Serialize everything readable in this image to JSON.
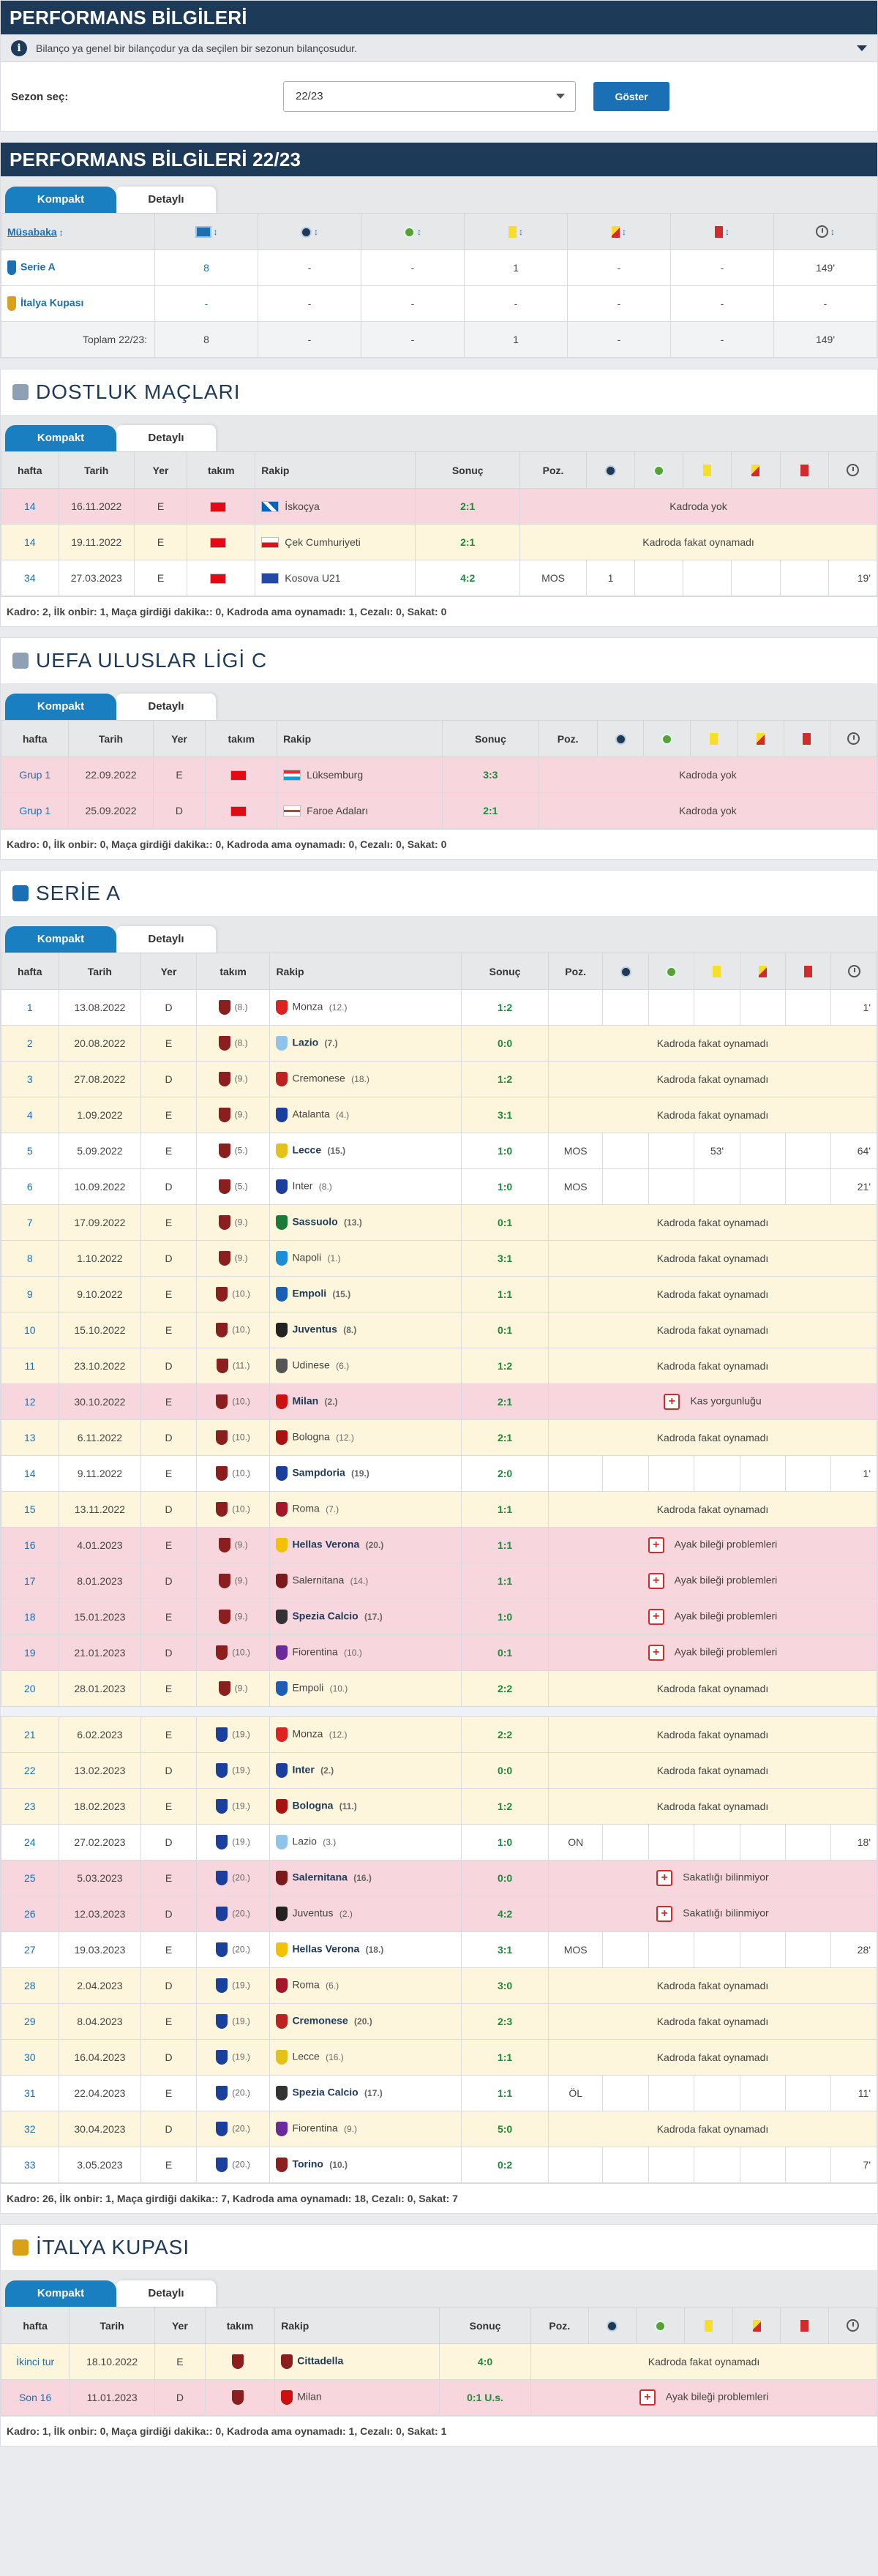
{
  "perf": {
    "title": "PERFORMANS BİLGİLERİ",
    "info": "Bilanço ya genel bir bilançodur ya da seçilen bir sezonun bilançosudur.",
    "season_label": "Sezon seç:",
    "season_value": "22/23",
    "show_button": "Göster"
  },
  "perf2": {
    "title": "PERFORMANS BİLGİLERİ 22/23",
    "tab_compact": "Kompakt",
    "tab_detail": "Detaylı",
    "col_comp": "Müsabaka",
    "rows": [
      {
        "comp": "Serie A",
        "c1": "8",
        "c2": "-",
        "c3": "-",
        "c4": "1",
        "c5": "-",
        "c6": "-",
        "c7": "149'"
      },
      {
        "comp": "İtalya Kupası",
        "c1": "-",
        "c2": "-",
        "c3": "-",
        "c4": "-",
        "c5": "-",
        "c6": "-",
        "c7": "-"
      }
    ],
    "total": {
      "label": "Toplam 22/23:",
      "c1": "8",
      "c2": "-",
      "c3": "-",
      "c4": "1",
      "c5": "-",
      "c6": "-",
      "c7": "149'"
    }
  },
  "cols": {
    "hafta": "hafta",
    "tarih": "Tarih",
    "yer": "Yer",
    "takim": "takım",
    "rakip": "Rakip",
    "sonuc": "Sonuç",
    "poz": "Poz."
  },
  "friendly": {
    "title": "DOSTLUK MAÇLARI",
    "tab_compact": "Kompakt",
    "tab_detail": "Detaylı",
    "rows": [
      {
        "h": "14",
        "d": "16.11.2022",
        "y": "E",
        "opp": "İskoçya",
        "res": "2:1",
        "note": "Kadroda yok",
        "cls": "r"
      },
      {
        "h": "14",
        "d": "19.11.2022",
        "y": "E",
        "opp": "Çek Cumhuriyeti",
        "res": "2:1",
        "note": "Kadroda fakat oynamadı",
        "cls": "y"
      },
      {
        "h": "34",
        "d": "27.03.2023",
        "y": "E",
        "opp": "Kosova U21",
        "res": "4:2",
        "poz": "MOS",
        "g": "1",
        "min": "19'",
        "cls": "w"
      }
    ],
    "footer": "Kadro: 2, İlk onbir: 1, Maça girdiği dakika:: 0, Kadroda ama oynamadı: 1, Cezalı: 0, Sakat: 0"
  },
  "nations": {
    "title": "UEFA ULUSLAR LİGİ C",
    "tab_compact": "Kompakt",
    "tab_detail": "Detaylı",
    "rows": [
      {
        "h": "Grup 1",
        "d": "22.09.2022",
        "y": "E",
        "opp": "Lüksemburg",
        "res": "3:3",
        "note": "Kadroda yok",
        "cls": "r"
      },
      {
        "h": "Grup 1",
        "d": "25.09.2022",
        "y": "D",
        "opp": "Faroe Adaları",
        "res": "2:1",
        "note": "Kadroda yok",
        "cls": "r"
      }
    ],
    "footer": "Kadro: 0, İlk onbir: 0, Maça girdiği dakika:: 0, Kadroda ama oynamadı: 0, Cezalı: 0, Sakat: 0"
  },
  "seriea": {
    "title": "SERİE A",
    "tab_compact": "Kompakt",
    "tab_detail": "Detaylı",
    "rows": [
      {
        "h": "1",
        "d": "13.08.2022",
        "y": "D",
        "tr": "(8.)",
        "opp": "Monza",
        "or": "(12.)",
        "res": "1:2",
        "min": "1'",
        "cls": "w"
      },
      {
        "h": "2",
        "d": "20.08.2022",
        "y": "E",
        "tr": "(8.)",
        "opp": "Lazio",
        "or": "(7.)",
        "res": "0:0",
        "note": "Kadroda fakat oynamadı",
        "cls": "y",
        "b": 1
      },
      {
        "h": "3",
        "d": "27.08.2022",
        "y": "D",
        "tr": "(9.)",
        "opp": "Cremonese",
        "or": "(18.)",
        "res": "1:2",
        "note": "Kadroda fakat oynamadı",
        "cls": "y"
      },
      {
        "h": "4",
        "d": "1.09.2022",
        "y": "E",
        "tr": "(9.)",
        "opp": "Atalanta",
        "or": "(4.)",
        "res": "3:1",
        "note": "Kadroda fakat oynamadı",
        "cls": "y"
      },
      {
        "h": "5",
        "d": "5.09.2022",
        "y": "E",
        "tr": "(5.)",
        "opp": "Lecce",
        "or": "(15.)",
        "res": "1:0",
        "poz": "MOS",
        "yc": "53'",
        "min": "64'",
        "cls": "w",
        "b": 1
      },
      {
        "h": "6",
        "d": "10.09.2022",
        "y": "D",
        "tr": "(5.)",
        "opp": "Inter",
        "or": "(8.)",
        "res": "1:0",
        "poz": "MOS",
        "min": "21'",
        "cls": "w"
      },
      {
        "h": "7",
        "d": "17.09.2022",
        "y": "E",
        "tr": "(9.)",
        "opp": "Sassuolo",
        "or": "(13.)",
        "res": "0:1",
        "note": "Kadroda fakat oynamadı",
        "cls": "y",
        "b": 1
      },
      {
        "h": "8",
        "d": "1.10.2022",
        "y": "D",
        "tr": "(9.)",
        "opp": "Napoli",
        "or": "(1.)",
        "res": "3:1",
        "note": "Kadroda fakat oynamadı",
        "cls": "y"
      },
      {
        "h": "9",
        "d": "9.10.2022",
        "y": "E",
        "tr": "(10.)",
        "opp": "Empoli",
        "or": "(15.)",
        "res": "1:1",
        "note": "Kadroda fakat oynamadı",
        "cls": "y",
        "b": 1
      },
      {
        "h": "10",
        "d": "15.10.2022",
        "y": "E",
        "tr": "(10.)",
        "opp": "Juventus",
        "or": "(8.)",
        "res": "0:1",
        "note": "Kadroda fakat oynamadı",
        "cls": "y",
        "b": 1
      },
      {
        "h": "11",
        "d": "23.10.2022",
        "y": "D",
        "tr": "(11.)",
        "opp": "Udinese",
        "or": "(6.)",
        "res": "1:2",
        "note": "Kadroda fakat oynamadı",
        "cls": "y"
      },
      {
        "h": "12",
        "d": "30.10.2022",
        "y": "E",
        "tr": "(10.)",
        "opp": "Milan",
        "or": "(2.)",
        "res": "2:1",
        "note": "Kas yorgunluğu",
        "inj": 1,
        "cls": "r",
        "b": 1
      },
      {
        "h": "13",
        "d": "6.11.2022",
        "y": "D",
        "tr": "(10.)",
        "opp": "Bologna",
        "or": "(12.)",
        "res": "2:1",
        "note": "Kadroda fakat oynamadı",
        "cls": "y"
      },
      {
        "h": "14",
        "d": "9.11.2022",
        "y": "E",
        "tr": "(10.)",
        "opp": "Sampdoria",
        "or": "(19.)",
        "res": "2:0",
        "min": "1'",
        "cls": "w",
        "b": 1
      },
      {
        "h": "15",
        "d": "13.11.2022",
        "y": "D",
        "tr": "(10.)",
        "opp": "Roma",
        "or": "(7.)",
        "res": "1:1",
        "note": "Kadroda fakat oynamadı",
        "cls": "y"
      },
      {
        "h": "16",
        "d": "4.01.2023",
        "y": "E",
        "tr": "(9.)",
        "opp": "Hellas Verona",
        "or": "(20.)",
        "res": "1:1",
        "note": "Ayak bileği problemleri",
        "inj": 1,
        "cls": "r",
        "b": 1
      },
      {
        "h": "17",
        "d": "8.01.2023",
        "y": "D",
        "tr": "(9.)",
        "opp": "Salernitana",
        "or": "(14.)",
        "res": "1:1",
        "note": "Ayak bileği problemleri",
        "inj": 1,
        "cls": "r"
      },
      {
        "h": "18",
        "d": "15.01.2023",
        "y": "E",
        "tr": "(9.)",
        "opp": "Spezia Calcio",
        "or": "(17.)",
        "res": "1:0",
        "note": "Ayak bileği problemleri",
        "inj": 1,
        "cls": "r",
        "b": 1
      },
      {
        "h": "19",
        "d": "21.01.2023",
        "y": "D",
        "tr": "(10.)",
        "opp": "Fiorentina",
        "or": "(10.)",
        "res": "0:1",
        "note": "Ayak bileği problemleri",
        "inj": 1,
        "cls": "r"
      },
      {
        "h": "20",
        "d": "28.01.2023",
        "y": "E",
        "tr": "(9.)",
        "opp": "Empoli",
        "or": "(10.)",
        "res": "2:2",
        "note": "Kadroda fakat oynamadı",
        "cls": "y"
      },
      {
        "sep": 1
      },
      {
        "h": "21",
        "d": "6.02.2023",
        "y": "E",
        "tr": "(19.)",
        "opp": "Monza",
        "or": "(12.)",
        "res": "2:2",
        "note": "Kadroda fakat oynamadı",
        "cls": "y",
        "s": 1
      },
      {
        "h": "22",
        "d": "13.02.2023",
        "y": "D",
        "tr": "(19.)",
        "opp": "Inter",
        "or": "(2.)",
        "res": "0:0",
        "note": "Kadroda fakat oynamadı",
        "cls": "y",
        "s": 1,
        "b": 1
      },
      {
        "h": "23",
        "d": "18.02.2023",
        "y": "E",
        "tr": "(19.)",
        "opp": "Bologna",
        "or": "(11.)",
        "res": "1:2",
        "note": "Kadroda fakat oynamadı",
        "cls": "y",
        "s": 1,
        "b": 1
      },
      {
        "h": "24",
        "d": "27.02.2023",
        "y": "D",
        "tr": "(19.)",
        "opp": "Lazio",
        "or": "(3.)",
        "res": "1:0",
        "poz": "ON",
        "min": "18'",
        "cls": "w",
        "s": 1
      },
      {
        "h": "25",
        "d": "5.03.2023",
        "y": "E",
        "tr": "(20.)",
        "opp": "Salernitana",
        "or": "(16.)",
        "res": "0:0",
        "note": "Sakatlığı bilinmiyor",
        "inj": 1,
        "cls": "r",
        "s": 1,
        "b": 1
      },
      {
        "h": "26",
        "d": "12.03.2023",
        "y": "D",
        "tr": "(20.)",
        "opp": "Juventus",
        "or": "(2.)",
        "res": "4:2",
        "note": "Sakatlığı bilinmiyor",
        "inj": 1,
        "cls": "r",
        "s": 1
      },
      {
        "h": "27",
        "d": "19.03.2023",
        "y": "E",
        "tr": "(20.)",
        "opp": "Hellas Verona",
        "or": "(18.)",
        "res": "3:1",
        "poz": "MOS",
        "min": "28'",
        "cls": "w",
        "s": 1,
        "b": 1
      },
      {
        "h": "28",
        "d": "2.04.2023",
        "y": "D",
        "tr": "(19.)",
        "opp": "Roma",
        "or": "(6.)",
        "res": "3:0",
        "note": "Kadroda fakat oynamadı",
        "cls": "y",
        "s": 1
      },
      {
        "h": "29",
        "d": "8.04.2023",
        "y": "E",
        "tr": "(19.)",
        "opp": "Cremonese",
        "or": "(20.)",
        "res": "2:3",
        "note": "Kadroda fakat oynamadı",
        "cls": "y",
        "s": 1,
        "b": 1
      },
      {
        "h": "30",
        "d": "16.04.2023",
        "y": "D",
        "tr": "(19.)",
        "opp": "Lecce",
        "or": "(16.)",
        "res": "1:1",
        "note": "Kadroda fakat oynamadı",
        "cls": "y",
        "s": 1
      },
      {
        "h": "31",
        "d": "22.04.2023",
        "y": "E",
        "tr": "(20.)",
        "opp": "Spezia Calcio",
        "or": "(17.)",
        "res": "1:1",
        "poz": "ÖL",
        "min": "11'",
        "cls": "w",
        "s": 1,
        "b": 1
      },
      {
        "h": "32",
        "d": "30.04.2023",
        "y": "D",
        "tr": "(20.)",
        "opp": "Fiorentina",
        "or": "(9.)",
        "res": "5:0",
        "note": "Kadroda fakat oynamadı",
        "cls": "y",
        "s": 1
      },
      {
        "h": "33",
        "d": "3.05.2023",
        "y": "E",
        "tr": "(20.)",
        "opp": "Torino",
        "or": "(10.)",
        "res": "0:2",
        "min": "7'",
        "cls": "w",
        "s": 1,
        "b": 1
      }
    ],
    "footer": "Kadro: 26, İlk onbir: 1, Maça girdiği dakika:: 7, Kadroda ama oynamadı: 18, Cezalı: 0, Sakat: 7"
  },
  "cup": {
    "title": "İTALYA KUPASI",
    "tab_compact": "Kompakt",
    "tab_detail": "Detaylı",
    "rows": [
      {
        "h": "İkinci tur",
        "d": "18.10.2022",
        "y": "E",
        "opp": "Cittadella",
        "res": "4:0",
        "note": "Kadroda fakat oynamadı",
        "cls": "y",
        "b": 1
      },
      {
        "h": "Son 16",
        "d": "11.01.2023",
        "y": "D",
        "opp": "Milan",
        "res": "0:1 U.s.",
        "note": "Ayak bileği problemleri",
        "inj": 1,
        "cls": "r"
      }
    ],
    "footer": "Kadro: 1, İlk onbir: 0, Maça girdiği dakika:: 0, Kadroda ama oynamadı: 1, Cezalı: 0, Sakat: 1"
  }
}
